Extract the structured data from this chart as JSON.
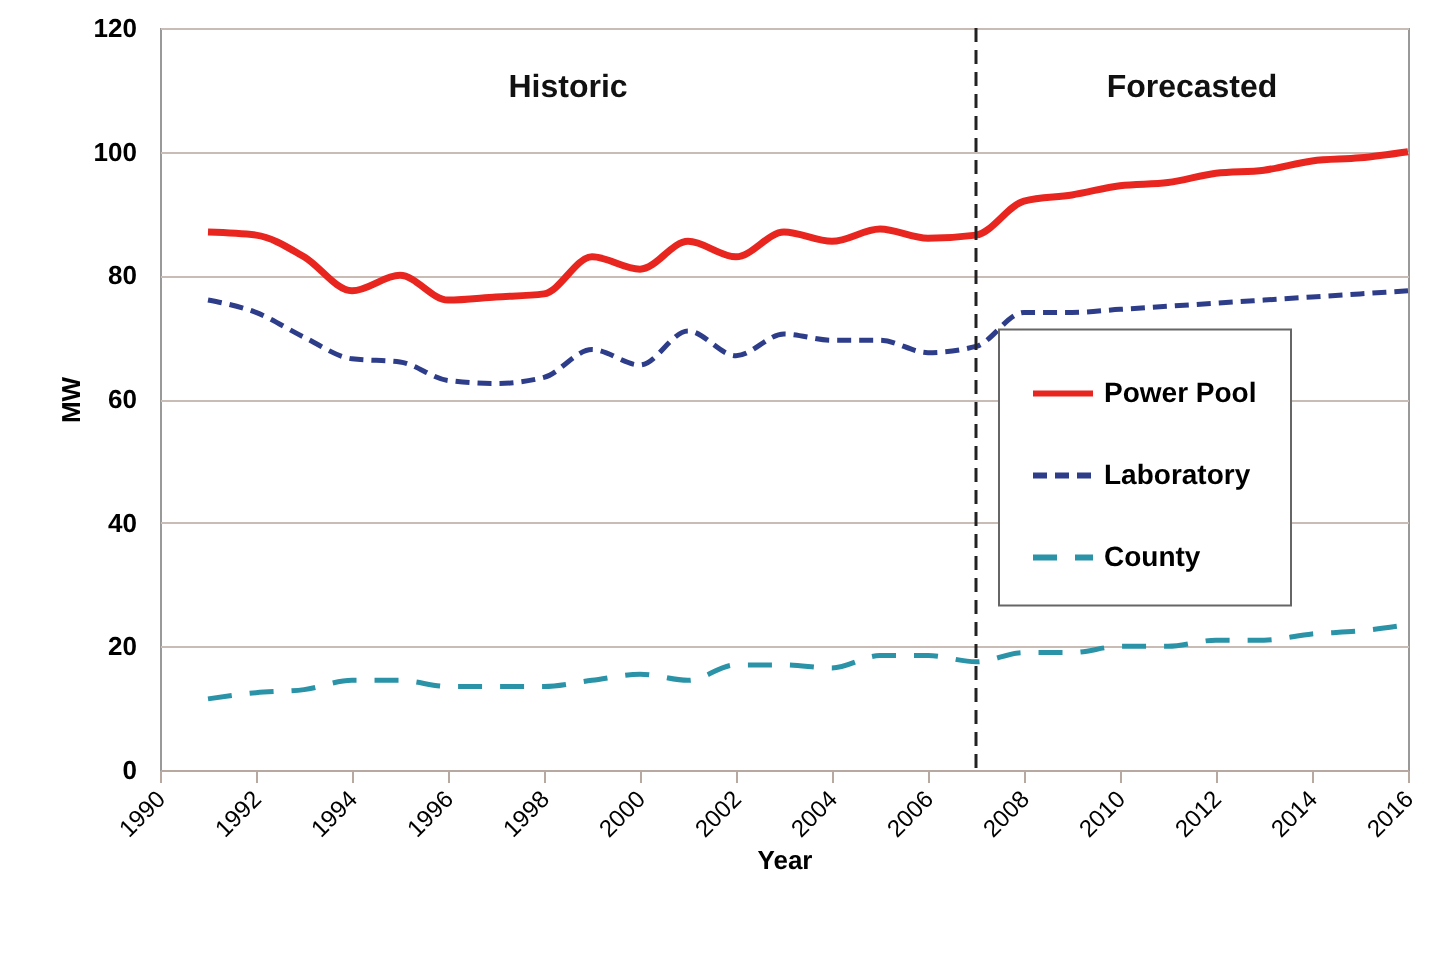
{
  "chart_data": {
    "type": "line",
    "xlabel": "Year",
    "ylabel": "MW",
    "x": [
      1991,
      1992,
      1993,
      1994,
      1995,
      1996,
      1997,
      1998,
      1999,
      2000,
      2001,
      2002,
      2003,
      2004,
      2005,
      2006,
      2007,
      2008,
      2009,
      2010,
      2011,
      2012,
      2013,
      2014,
      2015,
      2016
    ],
    "series": [
      {
        "name": "Power Pool",
        "color": "#e8261f",
        "line_style": "solid",
        "values": [
          87,
          86.5,
          83,
          77.5,
          80,
          76,
          76.5,
          77,
          83,
          81,
          85.5,
          83,
          87,
          85.5,
          87.5,
          86,
          86.5,
          92,
          93,
          94.5,
          95,
          96.5,
          97,
          98.5,
          99,
          100
        ]
      },
      {
        "name": "Laboratory",
        "color": "#2e3d8a",
        "line_style": "dashed",
        "values": [
          76,
          74,
          70,
          66.5,
          66,
          63,
          62.5,
          63.5,
          68,
          65.5,
          71,
          67,
          70.5,
          69.5,
          69.5,
          67.5,
          68.5,
          74,
          74,
          74.5,
          75,
          75.5,
          76,
          76.5,
          77,
          77.5
        ]
      },
      {
        "name": "County",
        "color": "#2a93a8",
        "line_style": "dashed",
        "values": [
          11.5,
          12.5,
          13,
          14.5,
          14.5,
          13.5,
          13.5,
          13.5,
          14.5,
          15.5,
          14.5,
          17,
          17,
          16.5,
          18.5,
          18.5,
          17.5,
          19,
          19,
          20,
          20,
          21,
          21,
          22,
          22.5,
          23.5
        ]
      }
    ],
    "xlim": [
      1990,
      2016
    ],
    "xticks": [
      1990,
      1992,
      1994,
      1996,
      1998,
      2000,
      2002,
      2004,
      2006,
      2008,
      2010,
      2012,
      2014,
      2016
    ],
    "ylim": [
      0,
      120
    ],
    "yticks": [
      0,
      20,
      40,
      60,
      80,
      100,
      120
    ],
    "ref_lines": [
      {
        "axis": "x",
        "value": 2007,
        "color": "#222222",
        "line_style": "dashed"
      }
    ],
    "annotations": [
      "Historic",
      "Forecasted"
    ],
    "grid": "y",
    "legend": "right"
  }
}
